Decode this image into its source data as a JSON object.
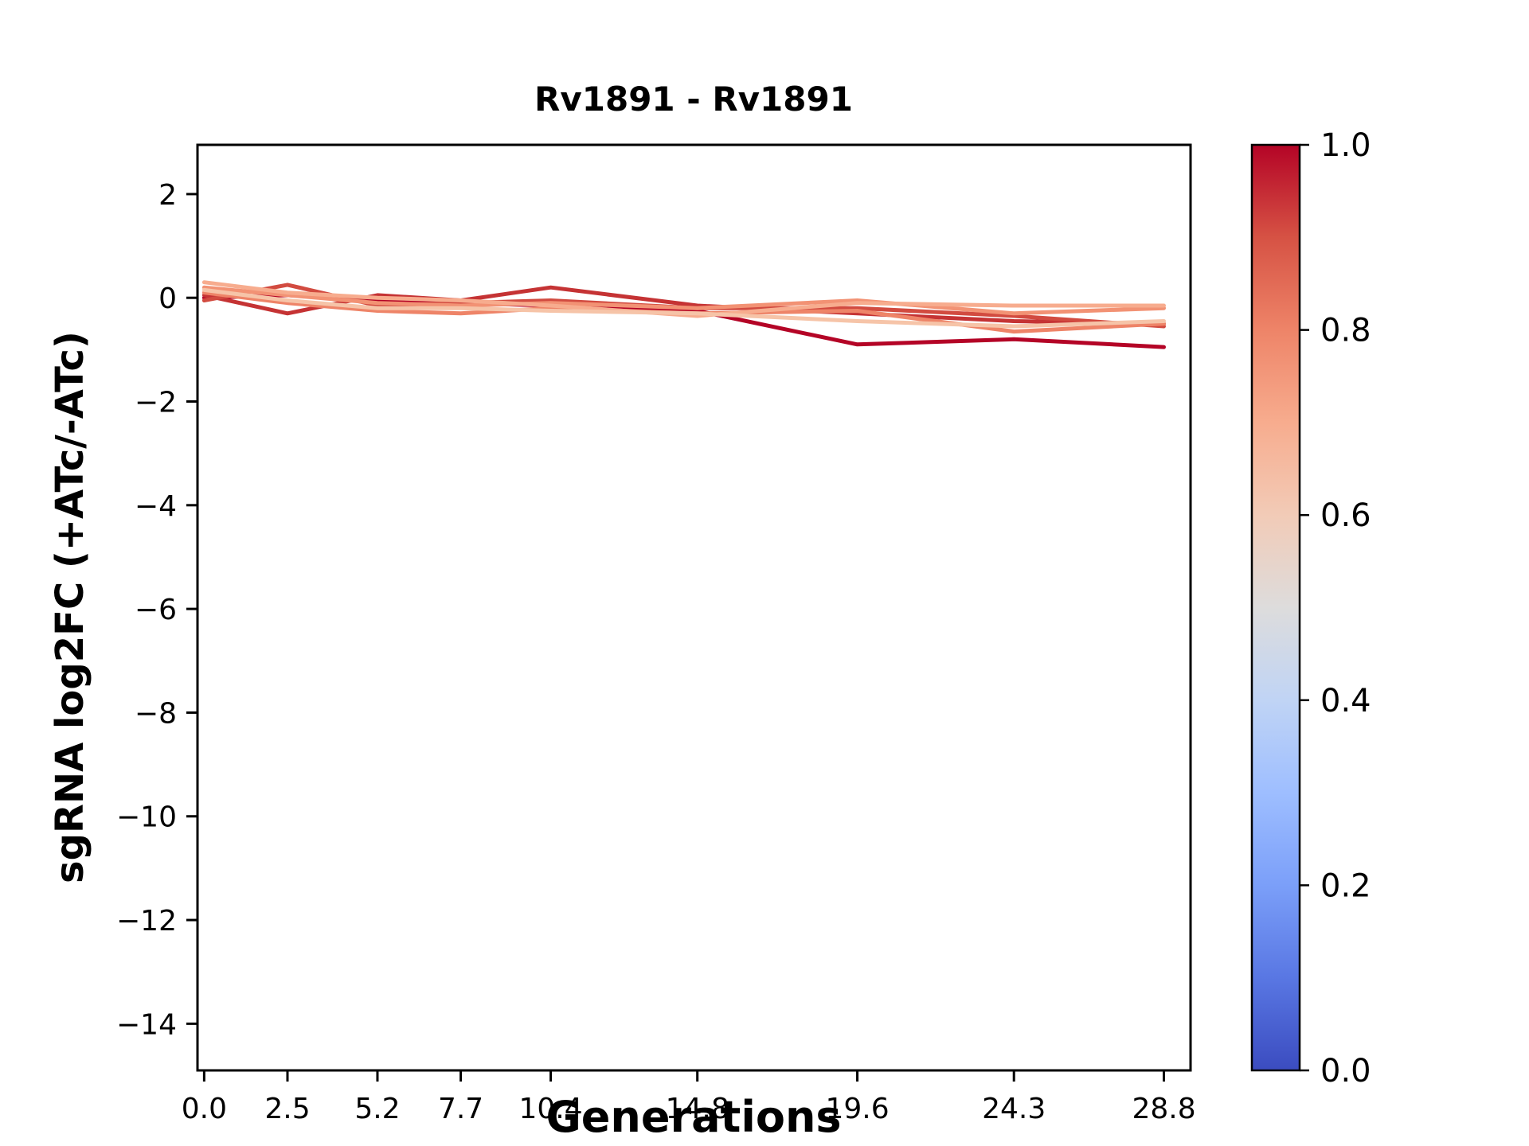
{
  "chart_data": {
    "type": "line",
    "title": "Rv1891 - Rv1891",
    "xlabel": "Generations",
    "ylabel": "sgRNA log2FC (+ATc/-ATc)",
    "grid": false,
    "legend": "none",
    "xlim": [
      -0.2,
      29.6
    ],
    "ylim": [
      -14.9,
      2.95
    ],
    "x": [
      0.0,
      2.5,
      5.2,
      7.7,
      10.4,
      14.8,
      19.6,
      24.3,
      28.8
    ],
    "x_tick_values": [
      0.0,
      2.5,
      5.2,
      7.7,
      10.4,
      14.8,
      19.6,
      24.3,
      28.8
    ],
    "x_tick_labels": [
      "0.0",
      "2.5",
      "5.2",
      "7.7",
      "10.4",
      "14.8",
      "19.6",
      "24.3",
      "28.8"
    ],
    "y_tick_values": [
      2,
      0,
      -2,
      -4,
      -6,
      -8,
      -10,
      -12,
      -14
    ],
    "y_tick_labels": [
      "2",
      "0",
      "−2",
      "−4",
      "−6",
      "−8",
      "−10",
      "−12",
      "−14"
    ],
    "series": [
      {
        "name": "line-1",
        "colorbar_value": 1.0,
        "color": "#b40426",
        "values": [
          0.0,
          0.05,
          -0.05,
          -0.1,
          -0.15,
          -0.25,
          -0.9,
          -0.8,
          -0.95
        ]
      },
      {
        "name": "line-2",
        "colorbar_value": 0.95,
        "color": "#c53334",
        "values": [
          0.05,
          -0.3,
          0.05,
          -0.05,
          0.2,
          -0.15,
          -0.3,
          -0.45,
          -0.5
        ]
      },
      {
        "name": "line-3",
        "colorbar_value": 0.9,
        "color": "#d24b40",
        "values": [
          -0.05,
          0.25,
          -0.15,
          -0.1,
          -0.05,
          -0.2,
          -0.2,
          -0.35,
          -0.55
        ]
      },
      {
        "name": "line-4",
        "colorbar_value": 0.8,
        "color": "#ee8468",
        "values": [
          0.1,
          -0.1,
          -0.25,
          -0.3,
          -0.2,
          -0.3,
          -0.25,
          -0.65,
          -0.5
        ]
      },
      {
        "name": "line-5",
        "colorbar_value": 0.75,
        "color": "#f29274",
        "values": [
          0.2,
          0.05,
          -0.1,
          -0.15,
          -0.1,
          -0.2,
          -0.05,
          -0.3,
          -0.2
        ]
      },
      {
        "name": "line-6",
        "colorbar_value": 0.7,
        "color": "#f7ac8e",
        "values": [
          0.3,
          0.1,
          0.0,
          -0.05,
          -0.15,
          -0.35,
          -0.1,
          -0.15,
          -0.15
        ]
      },
      {
        "name": "line-7",
        "colorbar_value": 0.63,
        "color": "#f6c4a8",
        "values": [
          0.15,
          -0.05,
          -0.2,
          -0.2,
          -0.25,
          -0.3,
          -0.45,
          -0.55,
          -0.45
        ]
      }
    ],
    "colorbar": {
      "range": [
        0.0,
        1.0
      ],
      "tick_values": [
        1.0,
        0.8,
        0.6,
        0.4,
        0.2,
        0.0
      ],
      "tick_labels": [
        "1.0",
        "0.8",
        "0.6",
        "0.4",
        "0.2",
        "0.0"
      ],
      "gradient": [
        {
          "offset": 0.0,
          "color": "#3b4cc0"
        },
        {
          "offset": 0.1,
          "color": "#5977e3"
        },
        {
          "offset": 0.2,
          "color": "#7b9ff9"
        },
        {
          "offset": 0.3,
          "color": "#9ebeff"
        },
        {
          "offset": 0.4,
          "color": "#c0d4f5"
        },
        {
          "offset": 0.5,
          "color": "#dddcdc"
        },
        {
          "offset": 0.6,
          "color": "#f2cbb7"
        },
        {
          "offset": 0.7,
          "color": "#f7ac8e"
        },
        {
          "offset": 0.8,
          "color": "#ee8468"
        },
        {
          "offset": 0.9,
          "color": "#d65244"
        },
        {
          "offset": 1.0,
          "color": "#b40426"
        }
      ]
    }
  },
  "colors": {
    "axis": "#000000",
    "background": "#ffffff"
  }
}
